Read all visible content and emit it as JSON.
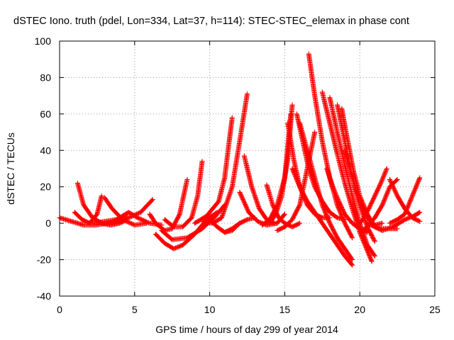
{
  "chart_data": {
    "type": "scatter",
    "title": "dSTEC Iono. truth (pdel, Lon=334, Lat=37, h=114): STEC-STEC_elemax in phase cont",
    "xlabel": "GPS time / hours of day 299 of year 2014",
    "ylabel": "dSTEC  / TECUs",
    "xlim": [
      0,
      25
    ],
    "ylim": [
      -40,
      100
    ],
    "xticks": [
      0,
      5,
      10,
      15,
      20,
      25
    ],
    "yticks": [
      -40,
      -20,
      0,
      20,
      40,
      60,
      80,
      100
    ],
    "grid": true,
    "marker": "+",
    "series_color": "#ff0000",
    "series": [
      {
        "x": [
          0.0,
          0.8,
          1.6,
          2.4,
          3.2,
          4.0,
          4.5
        ],
        "y": [
          3,
          1,
          -1,
          -1,
          0,
          1,
          3
        ]
      },
      {
        "x": [
          1.2,
          1.6,
          2.2,
          2.8,
          3.4,
          4.0,
          4.5
        ],
        "y": [
          22,
          10,
          3,
          0,
          -1,
          0,
          2
        ]
      },
      {
        "x": [
          1.0,
          1.5,
          2.0,
          2.5,
          2.8
        ],
        "y": [
          6,
          2,
          0,
          5,
          15
        ]
      },
      {
        "x": [
          3.0,
          3.5,
          4.2,
          5.0,
          5.8
        ],
        "y": [
          14,
          8,
          2,
          -1,
          0
        ]
      },
      {
        "x": [
          2.2,
          3.0,
          3.8,
          4.6,
          5.4,
          6.2
        ],
        "y": [
          0,
          1,
          2,
          3,
          6,
          13
        ]
      },
      {
        "x": [
          3.4,
          4.0,
          4.6,
          5.2,
          6.0,
          6.8
        ],
        "y": [
          0,
          3,
          6,
          3,
          0,
          -1
        ]
      },
      {
        "x": [
          6.0,
          6.4,
          7.0,
          7.5,
          8.0,
          8.5
        ],
        "y": [
          5,
          0,
          -4,
          -3,
          5,
          24
        ]
      },
      {
        "x": [
          6.4,
          7.0,
          7.6,
          8.2,
          9.0,
          9.8,
          10.5
        ],
        "y": [
          -6,
          -11,
          -14,
          -12,
          -6,
          2,
          6
        ]
      },
      {
        "x": [
          7.0,
          7.6,
          8.2,
          8.8,
          9.2,
          9.5
        ],
        "y": [
          2,
          -2,
          -2,
          3,
          15,
          34
        ]
      },
      {
        "x": [
          6.8,
          7.5,
          8.5,
          9.5,
          10.4,
          11.0
        ],
        "y": [
          -4,
          -9,
          -8,
          -3,
          4,
          10
        ]
      },
      {
        "x": [
          9.0,
          9.8,
          10.6,
          11.0,
          11.3,
          11.5
        ],
        "y": [
          0,
          4,
          12,
          25,
          45,
          58
        ]
      },
      {
        "x": [
          9.5,
          10.2,
          10.8,
          11.5,
          12.0,
          12.5
        ],
        "y": [
          1,
          0,
          3,
          20,
          45,
          71
        ]
      },
      {
        "x": [
          10.0,
          10.5,
          11.0,
          11.5,
          12.0
        ],
        "y": [
          2,
          -2,
          -5,
          -4,
          0
        ]
      },
      {
        "x": [
          11.0,
          11.5,
          12.0,
          12.5,
          13.0
        ],
        "y": [
          -5,
          -3,
          0,
          2,
          3
        ]
      },
      {
        "x": [
          12.3,
          12.8,
          13.3,
          13.8,
          14.3
        ],
        "y": [
          37,
          20,
          8,
          2,
          0
        ]
      },
      {
        "x": [
          12.0,
          12.6,
          13.2,
          13.8,
          14.5,
          15.0
        ],
        "y": [
          17,
          6,
          1,
          -1,
          0,
          5
        ]
      },
      {
        "x": [
          13.8,
          14.2,
          14.6,
          15.0,
          15.5,
          16.0
        ],
        "y": [
          21,
          10,
          3,
          0,
          -2,
          0
        ]
      },
      {
        "x": [
          13.5,
          14.0,
          14.5,
          15.0,
          15.4
        ],
        "y": [
          -1,
          2,
          10,
          25,
          60
        ]
      },
      {
        "x": [
          14.0,
          14.4,
          14.8,
          15.2,
          15.5
        ],
        "y": [
          0,
          5,
          15,
          35,
          65
        ]
      },
      {
        "x": [
          14.5,
          15.0,
          15.5,
          16.0,
          16.5,
          17.0
        ],
        "y": [
          -4,
          -2,
          2,
          10,
          30,
          50
        ]
      },
      {
        "x": [
          15.2,
          15.6,
          16.0,
          16.5,
          17.0,
          17.5,
          18.0
        ],
        "y": [
          55,
          35,
          20,
          10,
          5,
          3,
          3
        ]
      },
      {
        "x": [
          15.8,
          16.2,
          16.6,
          17.0,
          17.5,
          18.0,
          18.5,
          19.0
        ],
        "y": [
          60,
          45,
          30,
          20,
          12,
          6,
          3,
          2
        ]
      },
      {
        "x": [
          16.6,
          17.0,
          17.5,
          18.0,
          18.5,
          19.0,
          19.5
        ],
        "y": [
          93,
          70,
          45,
          25,
          10,
          0,
          -8
        ]
      },
      {
        "x": [
          16.0,
          16.5,
          17.0,
          17.5,
          18.0,
          18.5,
          19.0,
          19.5
        ],
        "y": [
          55,
          40,
          25,
          10,
          0,
          -8,
          -14,
          -20
        ]
      },
      {
        "x": [
          15.5,
          16.0,
          16.5,
          17.0,
          17.5,
          18.0,
          18.5,
          19.0,
          19.5
        ],
        "y": [
          30,
          20,
          12,
          6,
          0,
          -6,
          -12,
          -18,
          -23
        ]
      },
      {
        "x": [
          17.5,
          18.0,
          18.5,
          19.0,
          19.5,
          20.0,
          20.5,
          20.8
        ],
        "y": [
          72,
          55,
          38,
          22,
          8,
          -5,
          -15,
          -21
        ]
      },
      {
        "x": [
          18.0,
          18.5,
          19.0,
          19.5,
          20.0,
          20.5,
          21.0
        ],
        "y": [
          69,
          50,
          32,
          15,
          0,
          -12,
          -18
        ]
      },
      {
        "x": [
          18.5,
          19.0,
          19.5,
          20.0,
          20.5,
          21.0
        ],
        "y": [
          65,
          45,
          25,
          10,
          -2,
          -10
        ]
      },
      {
        "x": [
          18.8,
          19.2,
          19.6,
          20.0,
          20.5,
          21.0,
          21.5
        ],
        "y": [
          63,
          45,
          28,
          15,
          5,
          -2,
          -4
        ]
      },
      {
        "x": [
          17.8,
          18.2,
          18.6,
          19.0,
          19.5,
          20.0,
          20.5
        ],
        "y": [
          30,
          20,
          12,
          5,
          0,
          -3,
          -5
        ]
      },
      {
        "x": [
          19.0,
          19.5,
          20.0,
          20.5,
          21.0,
          21.5
        ],
        "y": [
          40,
          25,
          12,
          3,
          -1,
          0
        ]
      },
      {
        "x": [
          19.8,
          20.2,
          20.6,
          21.0,
          21.4,
          21.8
        ],
        "y": [
          -2,
          2,
          8,
          15,
          22,
          30
        ]
      },
      {
        "x": [
          20.0,
          20.5,
          21.0,
          21.5,
          22.0,
          22.5
        ],
        "y": [
          -5,
          -2,
          3,
          10,
          20,
          24
        ]
      },
      {
        "x": [
          22.0,
          22.5,
          23.0,
          23.5,
          24.0
        ],
        "y": [
          0,
          2,
          5,
          15,
          25
        ]
      },
      {
        "x": [
          22.0,
          22.5,
          23.0,
          23.5,
          24.0
        ],
        "y": [
          24,
          15,
          8,
          3,
          1
        ]
      },
      {
        "x": [
          21.5,
          22.2,
          23.0,
          23.6,
          24.0
        ],
        "y": [
          -4,
          -2,
          2,
          4,
          6
        ]
      },
      {
        "x": [
          20.5,
          21.0,
          21.5,
          22.0,
          22.5
        ],
        "y": [
          0,
          -2,
          -3,
          -3,
          -3
        ]
      }
    ]
  }
}
